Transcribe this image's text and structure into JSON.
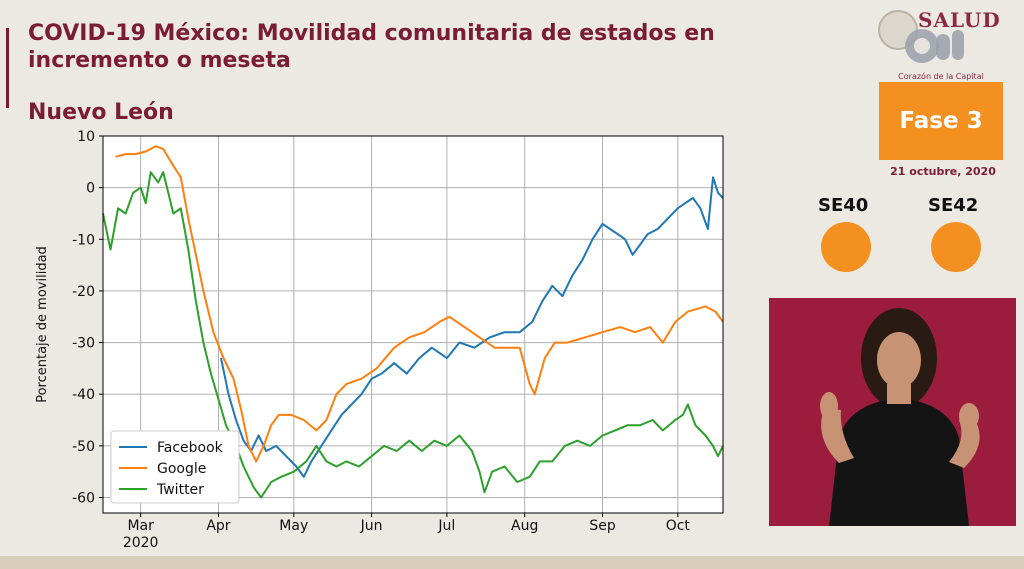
{
  "header": {
    "title": "COVID-19 México: Movilidad comunitaria de estados en incremento o meseta",
    "subtitle": "Nuevo León"
  },
  "branding": {
    "logo_text": "SALUD",
    "tagline": "Corazón de la Capital"
  },
  "status": {
    "phase_label": "Fase 3",
    "date": "21 octubre, 2020",
    "weeks": [
      {
        "label": "SE40",
        "color": "#f39020"
      },
      {
        "label": "SE42",
        "color": "#f39020"
      }
    ]
  },
  "colors": {
    "title": "#7a1c35",
    "accent_orange": "#f39020",
    "video_bg": "#9c1c3e"
  },
  "chart_data": {
    "type": "line",
    "xlabel": "",
    "ylabel": "Porcentaje de movilidad",
    "ylim": [
      -63,
      10
    ],
    "yticks": [
      10,
      0,
      -10,
      -20,
      -30,
      -40,
      -50,
      -60
    ],
    "xlim": [
      "2020-02-15",
      "2020-10-19"
    ],
    "xticks": [
      {
        "date": "2020-03-01",
        "label": "Mar",
        "sub": "2020"
      },
      {
        "date": "2020-04-01",
        "label": "Apr"
      },
      {
        "date": "2020-05-01",
        "label": "May"
      },
      {
        "date": "2020-06-01",
        "label": "Jun"
      },
      {
        "date": "2020-07-01",
        "label": "Jul"
      },
      {
        "date": "2020-08-01",
        "label": "Aug"
      },
      {
        "date": "2020-09-01",
        "label": "Sep"
      },
      {
        "date": "2020-10-01",
        "label": "Oct"
      }
    ],
    "grid": true,
    "legend_position": "lower-left",
    "series": [
      {
        "name": "Facebook",
        "color": "#1f77b4",
        "points": [
          [
            "2020-04-02",
            -33
          ],
          [
            "2020-04-05",
            -40
          ],
          [
            "2020-04-08",
            -45
          ],
          [
            "2020-04-11",
            -49
          ],
          [
            "2020-04-14",
            -51
          ],
          [
            "2020-04-17",
            -48
          ],
          [
            "2020-04-20",
            -51
          ],
          [
            "2020-04-24",
            -50
          ],
          [
            "2020-04-28",
            -52
          ],
          [
            "2020-05-02",
            -54
          ],
          [
            "2020-05-05",
            -56
          ],
          [
            "2020-05-08",
            -53
          ],
          [
            "2020-05-12",
            -50
          ],
          [
            "2020-05-16",
            -47
          ],
          [
            "2020-05-20",
            -44
          ],
          [
            "2020-05-24",
            -42
          ],
          [
            "2020-05-28",
            -40
          ],
          [
            "2020-06-01",
            -37
          ],
          [
            "2020-06-05",
            -36
          ],
          [
            "2020-06-10",
            -34
          ],
          [
            "2020-06-15",
            -36
          ],
          [
            "2020-06-20",
            -33
          ],
          [
            "2020-06-25",
            -31
          ],
          [
            "2020-07-01",
            -33
          ],
          [
            "2020-07-06",
            -30
          ],
          [
            "2020-07-12",
            -31
          ],
          [
            "2020-07-18",
            -29
          ],
          [
            "2020-07-24",
            -28
          ],
          [
            "2020-07-30",
            -28
          ],
          [
            "2020-08-04",
            -26
          ],
          [
            "2020-08-08",
            -22
          ],
          [
            "2020-08-12",
            -19
          ],
          [
            "2020-08-16",
            -21
          ],
          [
            "2020-08-20",
            -17
          ],
          [
            "2020-08-24",
            -14
          ],
          [
            "2020-08-28",
            -10
          ],
          [
            "2020-09-01",
            -7
          ],
          [
            "2020-09-04",
            -8
          ],
          [
            "2020-09-07",
            -9
          ],
          [
            "2020-09-10",
            -10
          ],
          [
            "2020-09-13",
            -13
          ],
          [
            "2020-09-16",
            -11
          ],
          [
            "2020-09-19",
            -9
          ],
          [
            "2020-09-23",
            -8
          ],
          [
            "2020-09-27",
            -6
          ],
          [
            "2020-10-01",
            -4
          ],
          [
            "2020-10-04",
            -3
          ],
          [
            "2020-10-07",
            -2
          ],
          [
            "2020-10-10",
            -4
          ],
          [
            "2020-10-13",
            -8
          ],
          [
            "2020-10-15",
            2
          ],
          [
            "2020-10-17",
            -1
          ],
          [
            "2020-10-19",
            -2
          ]
        ]
      },
      {
        "name": "Google",
        "color": "#ff7f0e",
        "points": [
          [
            "2020-02-20",
            6
          ],
          [
            "2020-02-24",
            6.5
          ],
          [
            "2020-02-28",
            6.5
          ],
          [
            "2020-03-03",
            7
          ],
          [
            "2020-03-07",
            8
          ],
          [
            "2020-03-10",
            7.5
          ],
          [
            "2020-03-13",
            5
          ],
          [
            "2020-03-17",
            2
          ],
          [
            "2020-03-20",
            -6
          ],
          [
            "2020-03-23",
            -13
          ],
          [
            "2020-03-26",
            -20
          ],
          [
            "2020-03-30",
            -28
          ],
          [
            "2020-04-03",
            -33
          ],
          [
            "2020-04-07",
            -37
          ],
          [
            "2020-04-10",
            -43
          ],
          [
            "2020-04-13",
            -50
          ],
          [
            "2020-04-16",
            -53
          ],
          [
            "2020-04-19",
            -50
          ],
          [
            "2020-04-22",
            -46
          ],
          [
            "2020-04-25",
            -44
          ],
          [
            "2020-04-30",
            -44
          ],
          [
            "2020-05-05",
            -45
          ],
          [
            "2020-05-10",
            -47
          ],
          [
            "2020-05-14",
            -45
          ],
          [
            "2020-05-18",
            -40
          ],
          [
            "2020-05-22",
            -38
          ],
          [
            "2020-05-28",
            -37
          ],
          [
            "2020-06-03",
            -35
          ],
          [
            "2020-06-10",
            -31
          ],
          [
            "2020-06-16",
            -29
          ],
          [
            "2020-06-22",
            -28
          ],
          [
            "2020-06-28",
            -26
          ],
          [
            "2020-07-02",
            -25
          ],
          [
            "2020-07-08",
            -27
          ],
          [
            "2020-07-14",
            -29
          ],
          [
            "2020-07-20",
            -31
          ],
          [
            "2020-07-26",
            -31
          ],
          [
            "2020-07-30",
            -31
          ],
          [
            "2020-08-03",
            -38
          ],
          [
            "2020-08-05",
            -40
          ],
          [
            "2020-08-09",
            -33
          ],
          [
            "2020-08-13",
            -30
          ],
          [
            "2020-08-18",
            -30
          ],
          [
            "2020-08-25",
            -29
          ],
          [
            "2020-09-01",
            -28
          ],
          [
            "2020-09-08",
            -27
          ],
          [
            "2020-09-14",
            -28
          ],
          [
            "2020-09-20",
            -27
          ],
          [
            "2020-09-25",
            -30
          ],
          [
            "2020-09-30",
            -26
          ],
          [
            "2020-10-05",
            -24
          ],
          [
            "2020-10-12",
            -23
          ],
          [
            "2020-10-16",
            -24
          ],
          [
            "2020-10-19",
            -26
          ]
        ]
      },
      {
        "name": "Twitter",
        "color": "#2ca02c",
        "points": [
          [
            "2020-02-15",
            -5
          ],
          [
            "2020-02-18",
            -12
          ],
          [
            "2020-02-21",
            -4
          ],
          [
            "2020-02-24",
            -5
          ],
          [
            "2020-02-27",
            -1
          ],
          [
            "2020-03-01",
            0
          ],
          [
            "2020-03-03",
            -3
          ],
          [
            "2020-03-05",
            3
          ],
          [
            "2020-03-08",
            1
          ],
          [
            "2020-03-10",
            3
          ],
          [
            "2020-03-12",
            -1
          ],
          [
            "2020-03-14",
            -5
          ],
          [
            "2020-03-17",
            -4
          ],
          [
            "2020-03-20",
            -12
          ],
          [
            "2020-03-23",
            -22
          ],
          [
            "2020-03-26",
            -30
          ],
          [
            "2020-03-29",
            -36
          ],
          [
            "2020-04-01",
            -41
          ],
          [
            "2020-04-04",
            -46
          ],
          [
            "2020-04-08",
            -50
          ],
          [
            "2020-04-11",
            -54
          ],
          [
            "2020-04-15",
            -58
          ],
          [
            "2020-04-18",
            -60
          ],
          [
            "2020-04-22",
            -57
          ],
          [
            "2020-04-26",
            -56
          ],
          [
            "2020-05-01",
            -55
          ],
          [
            "2020-05-06",
            -53
          ],
          [
            "2020-05-10",
            -50
          ],
          [
            "2020-05-14",
            -53
          ],
          [
            "2020-05-18",
            -54
          ],
          [
            "2020-05-22",
            -53
          ],
          [
            "2020-05-27",
            -54
          ],
          [
            "2020-06-01",
            -52
          ],
          [
            "2020-06-06",
            -50
          ],
          [
            "2020-06-11",
            -51
          ],
          [
            "2020-06-16",
            -49
          ],
          [
            "2020-06-21",
            -51
          ],
          [
            "2020-06-26",
            -49
          ],
          [
            "2020-07-01",
            -50
          ],
          [
            "2020-07-06",
            -48
          ],
          [
            "2020-07-11",
            -51
          ],
          [
            "2020-07-14",
            -55
          ],
          [
            "2020-07-16",
            -59
          ],
          [
            "2020-07-19",
            -55
          ],
          [
            "2020-07-24",
            -54
          ],
          [
            "2020-07-29",
            -57
          ],
          [
            "2020-08-03",
            -56
          ],
          [
            "2020-08-07",
            -53
          ],
          [
            "2020-08-12",
            -53
          ],
          [
            "2020-08-17",
            -50
          ],
          [
            "2020-08-22",
            -49
          ],
          [
            "2020-08-27",
            -50
          ],
          [
            "2020-09-01",
            -48
          ],
          [
            "2020-09-06",
            -47
          ],
          [
            "2020-09-11",
            -46
          ],
          [
            "2020-09-16",
            -46
          ],
          [
            "2020-09-21",
            -45
          ],
          [
            "2020-09-25",
            -47
          ],
          [
            "2020-09-30",
            -45
          ],
          [
            "2020-10-03",
            -44
          ],
          [
            "2020-10-05",
            -42
          ],
          [
            "2020-10-08",
            -46
          ],
          [
            "2020-10-12",
            -48
          ],
          [
            "2020-10-15",
            -50
          ],
          [
            "2020-10-17",
            -52
          ],
          [
            "2020-10-19",
            -50
          ]
        ]
      }
    ]
  }
}
